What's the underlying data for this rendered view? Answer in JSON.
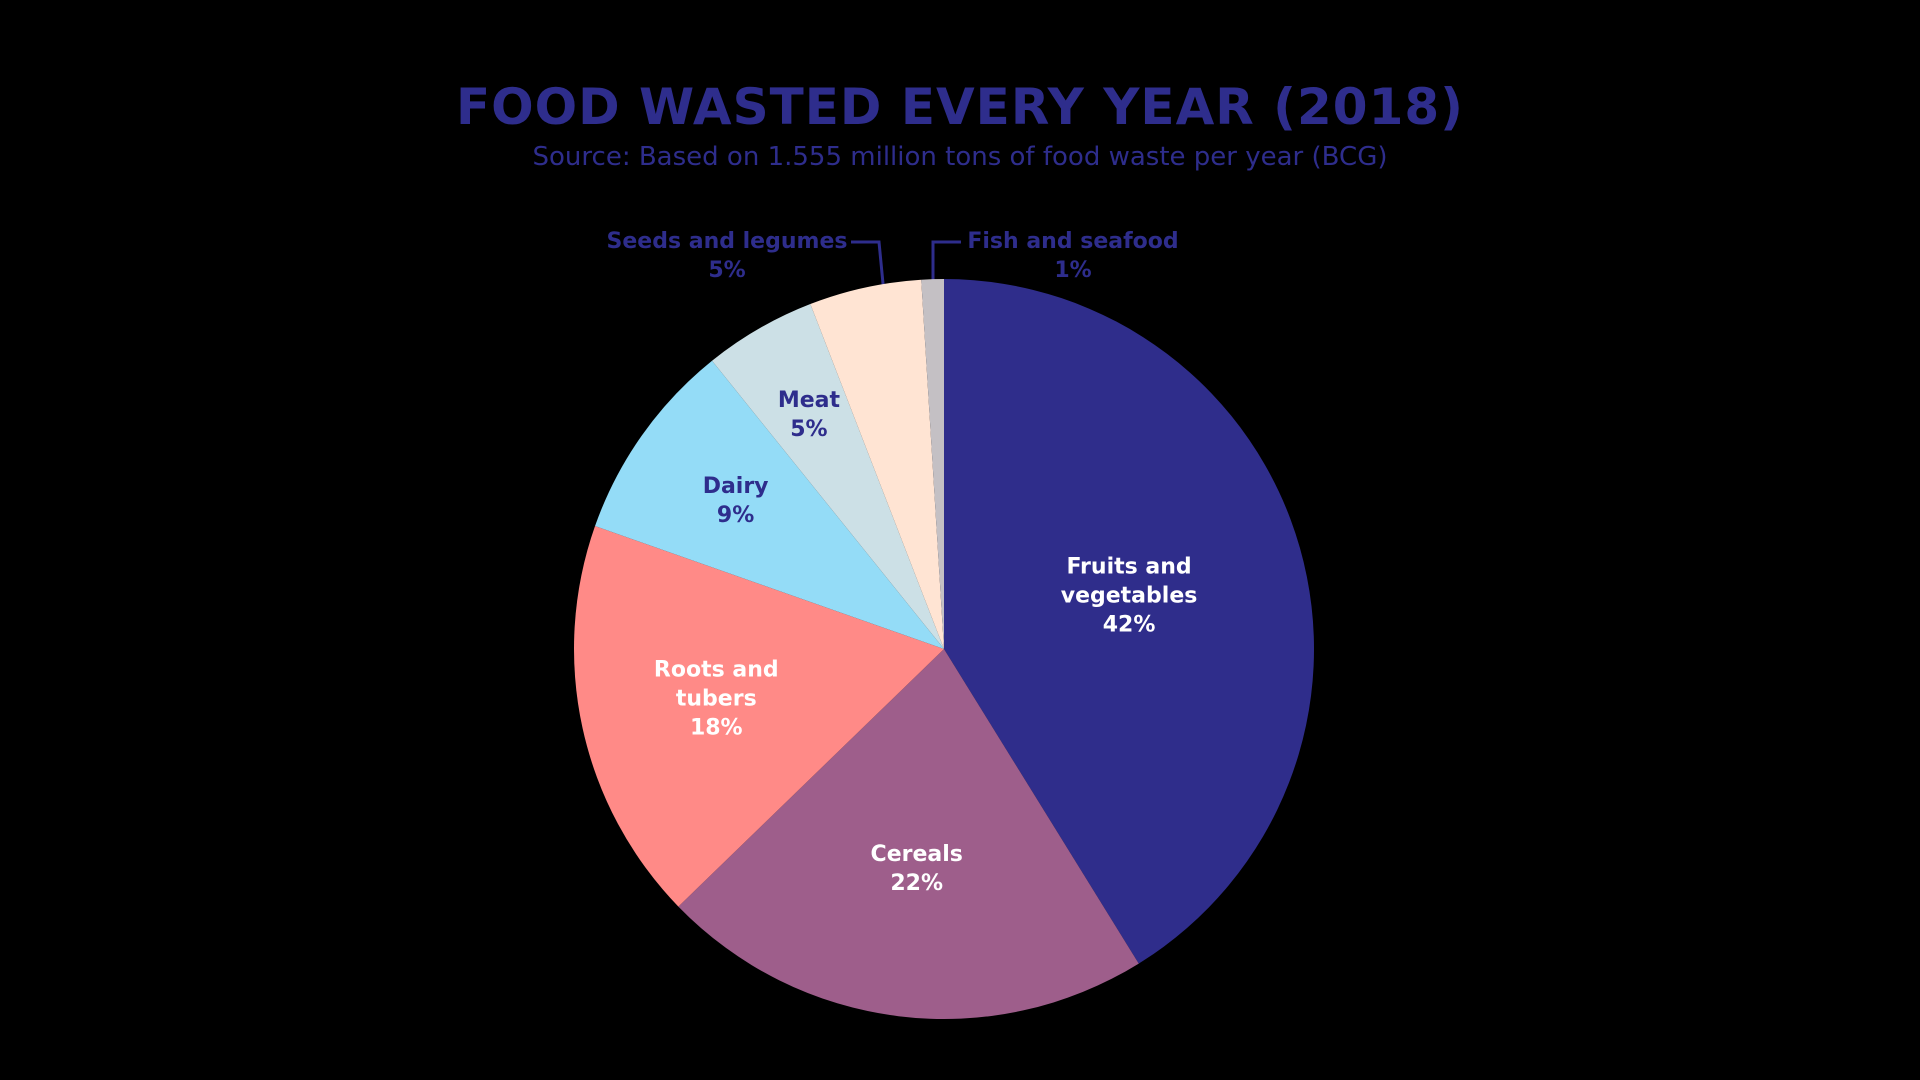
{
  "chart_data": {
    "type": "pie",
    "title": "FOOD WASTED EVERY YEAR (2018)",
    "subtitle": "Source: Based on 1.555 million tons of food waste per year (BCG)",
    "categories": [
      "Fruits and vegetables",
      "Cereals",
      "Roots and tubers",
      "Dairy",
      "Meat",
      "Seeds and legumes",
      "Fish and seafood"
    ],
    "values": [
      42,
      22,
      18,
      9,
      5,
      5,
      1
    ],
    "value_labels": [
      "42%",
      "22%",
      "18%",
      "9%",
      "5%",
      "5%",
      "1%"
    ],
    "colors": [
      "#2f2d8b",
      "#9e5e8b",
      "#ff8a87",
      "#94dcf7",
      "#cce0e6",
      "#ffe4d3",
      "#c4c0c4"
    ]
  }
}
